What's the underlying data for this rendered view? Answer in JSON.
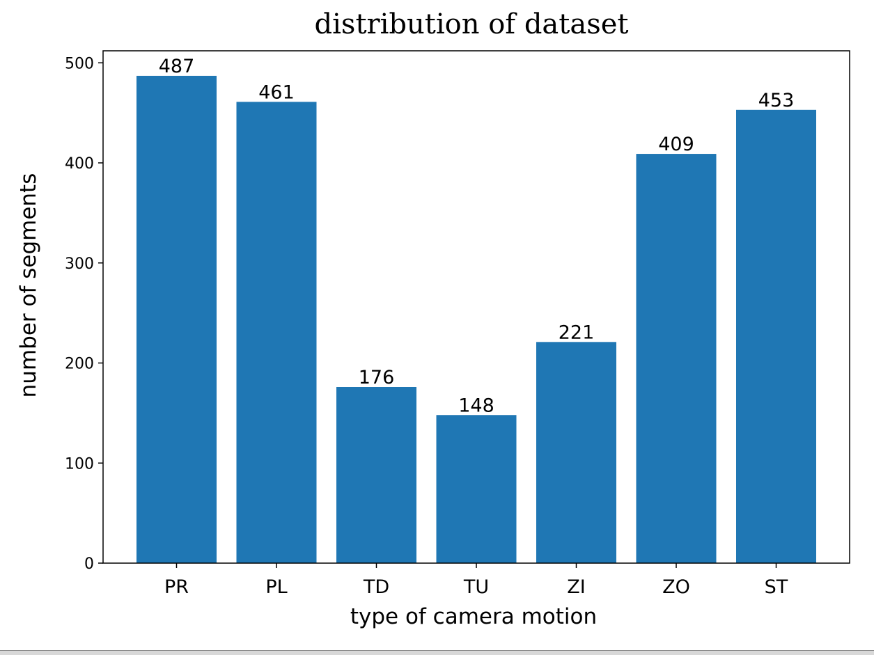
{
  "chart_data": {
    "type": "bar",
    "title": "distribution of dataset",
    "xlabel": "type of camera motion",
    "ylabel": "number of segments",
    "categories": [
      "PR",
      "PL",
      "TD",
      "TU",
      "ZI",
      "ZO",
      "ST"
    ],
    "values": [
      487,
      461,
      176,
      148,
      221,
      409,
      453
    ],
    "data_labels": [
      "487",
      "461",
      "176",
      "148",
      "221",
      "409",
      "453"
    ],
    "ylim": [
      0,
      512
    ],
    "yticks": [
      0,
      100,
      200,
      300,
      400,
      500
    ],
    "ytick_labels": [
      "0",
      "100",
      "200",
      "300",
      "400",
      "500"
    ],
    "grid": false,
    "bar_color": "#1f77b4"
  }
}
